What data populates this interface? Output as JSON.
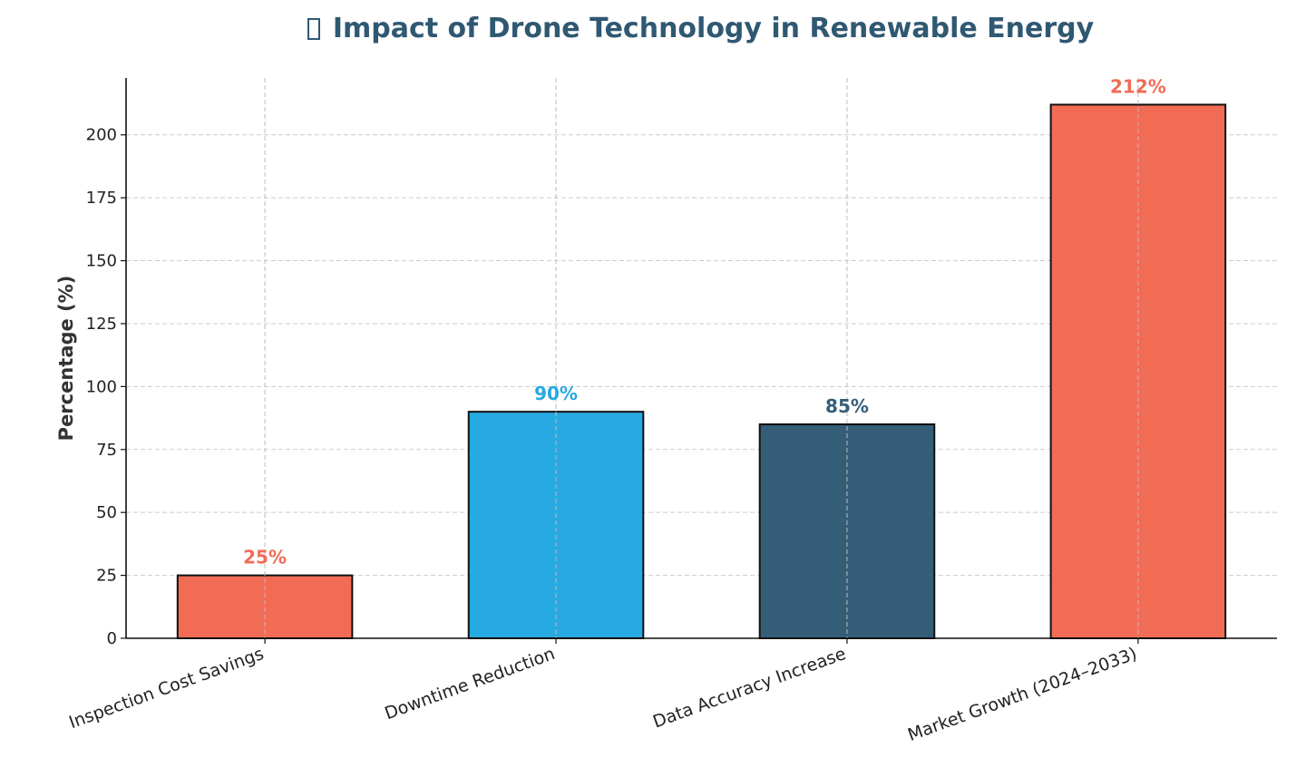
{
  "chart_data": {
    "type": "bar",
    "title": "Impact of Drone Technology in Renewable Energy",
    "title_icon": "missing-glyph-box",
    "xlabel": "",
    "ylabel": "Percentage (%)",
    "categories": [
      "Inspection Cost Savings",
      "Downtime Reduction",
      "Data Accuracy Increase",
      "Market Growth (2024–2033)"
    ],
    "values": [
      25,
      90,
      85,
      212
    ],
    "data_labels": [
      "25%",
      "90%",
      "85%",
      "212%"
    ],
    "bar_colors": [
      "#F26C55",
      "#27A9E1",
      "#345E78",
      "#F26C55"
    ],
    "label_colors": [
      "#F26C55",
      "#27A9E1",
      "#345E78",
      "#F26C55"
    ],
    "ylim": [
      0,
      222.6
    ],
    "yticks": [
      0,
      25,
      50,
      75,
      100,
      125,
      150,
      175,
      200
    ],
    "grid": true,
    "legend": "none"
  }
}
